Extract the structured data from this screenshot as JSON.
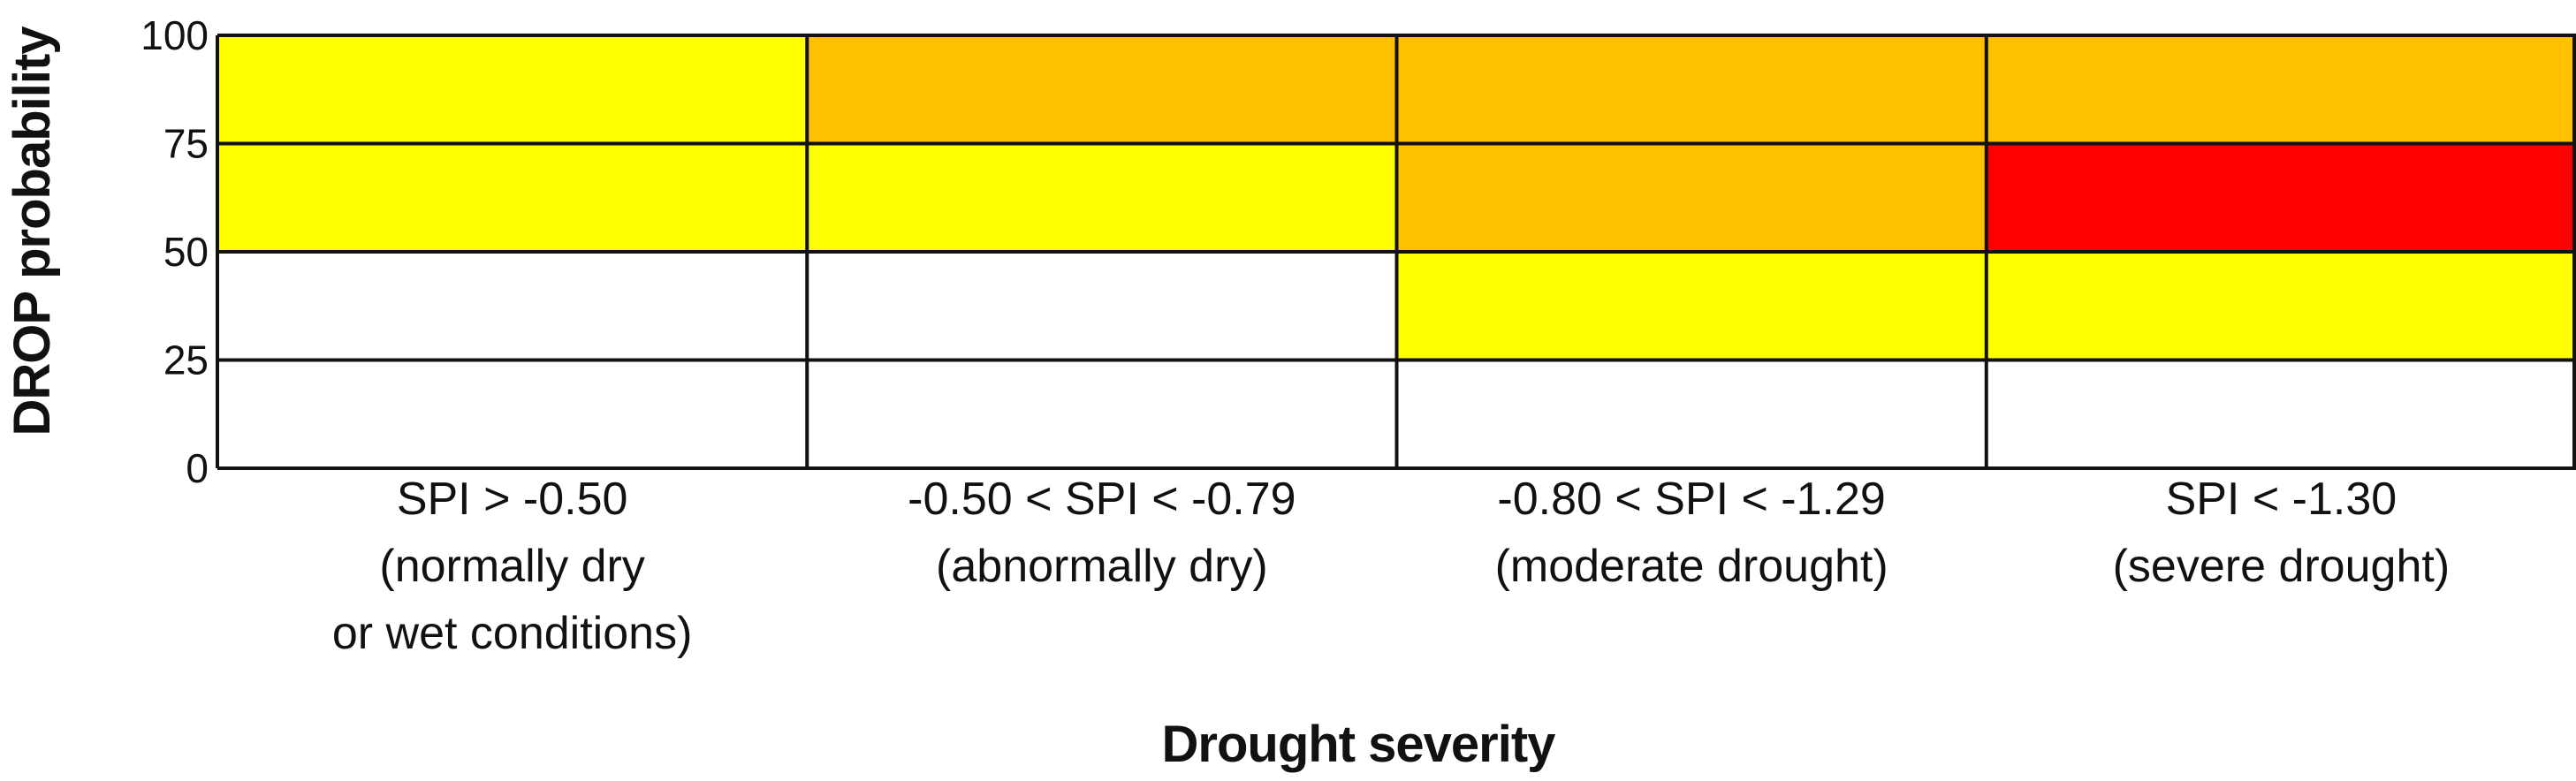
{
  "chart_data": {
    "type": "heatmap",
    "title": "",
    "xlabel": "Drought severity",
    "ylabel": "DROP probability",
    "categories": [
      [
        "SPI > -0.50",
        "(normally dry",
        "or wet conditions)"
      ],
      [
        "-0.50 < SPI < -0.79",
        "(abnormally dry)"
      ],
      [
        "-0.80 < SPI < -1.29",
        "(moderate drought)"
      ],
      [
        "SPI < -1.30",
        "(severe drought)"
      ]
    ],
    "y_ticks": [
      "0",
      "25",
      "50",
      "75",
      "100"
    ],
    "y_bins": [
      {
        "from": 0,
        "to": 25
      },
      {
        "from": 25,
        "to": 50
      },
      {
        "from": 50,
        "to": 75
      },
      {
        "from": 75,
        "to": 100
      }
    ],
    "ylim": [
      0,
      100
    ],
    "grid": true,
    "levels": [
      "none",
      "yellow",
      "orange",
      "red"
    ],
    "colors": {
      "none": "#ffffff",
      "yellow": "#ffff00",
      "orange": "#ffc000",
      "red": "#ff0000",
      "line": "#111111"
    },
    "cells": [
      [
        "none",
        "none",
        "none",
        "none"
      ],
      [
        "none",
        "none",
        "yellow",
        "yellow"
      ],
      [
        "yellow",
        "yellow",
        "orange",
        "red"
      ],
      [
        "yellow",
        "orange",
        "orange",
        "orange"
      ]
    ]
  }
}
